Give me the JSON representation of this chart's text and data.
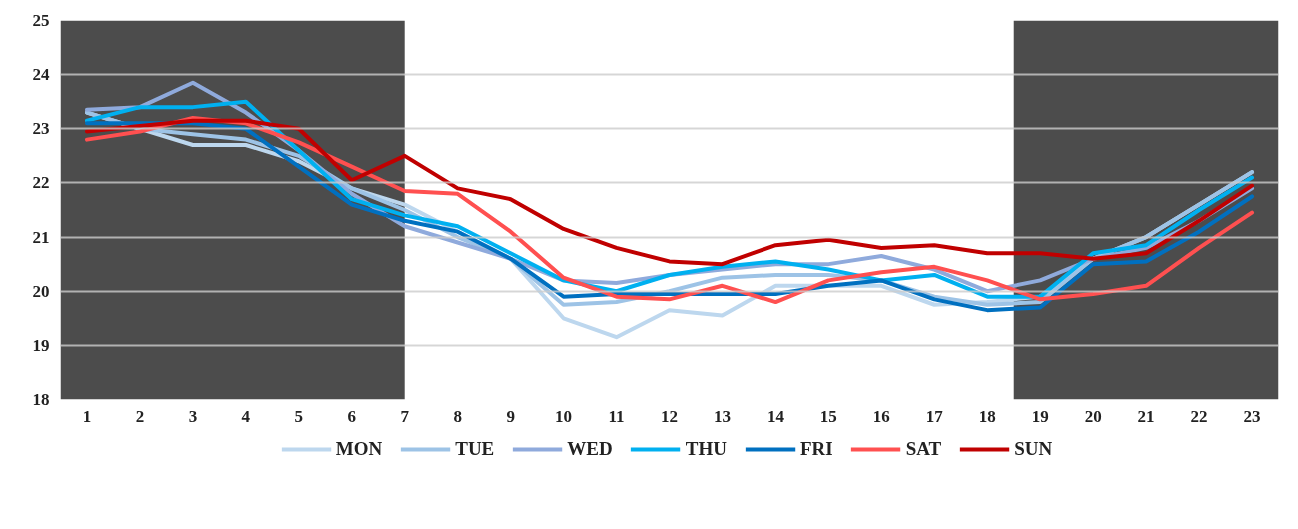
{
  "chart_data": {
    "type": "line",
    "x": [
      1,
      2,
      3,
      4,
      5,
      6,
      7,
      8,
      9,
      10,
      11,
      12,
      13,
      14,
      15,
      16,
      17,
      18,
      19,
      20,
      21,
      22,
      23
    ],
    "xlim": [
      0.5,
      23.5
    ],
    "xticks": [
      1,
      2,
      3,
      4,
      5,
      6,
      7,
      8,
      9,
      10,
      11,
      12,
      13,
      14,
      15,
      16,
      17,
      18,
      19,
      20,
      21,
      22,
      23
    ],
    "ylim": [
      18,
      25
    ],
    "yticks": [
      18,
      19,
      20,
      21,
      22,
      23,
      24,
      25
    ],
    "grid": "y",
    "legend": "bottom",
    "marker": "none",
    "line_style": "solid",
    "bands": [
      {
        "axis": "x",
        "from": 0.5,
        "to": 7,
        "color": "#000000"
      },
      {
        "axis": "x",
        "from": 18.5,
        "to": 23.5,
        "color": "#000000"
      }
    ],
    "series": [
      {
        "name": "MON",
        "color": "#bdd7ee",
        "values": [
          23.3,
          23.0,
          22.7,
          22.7,
          22.4,
          21.9,
          21.6,
          21.1,
          20.6,
          19.5,
          19.15,
          19.65,
          19.55,
          20.1,
          20.1,
          20.1,
          19.75,
          19.8,
          19.9,
          20.6,
          21.0,
          21.6,
          22.2
        ]
      },
      {
        "name": "TUE",
        "color": "#9dc3e6",
        "values": [
          23.3,
          23.0,
          22.9,
          22.8,
          22.5,
          21.9,
          21.5,
          21.0,
          20.6,
          19.75,
          19.8,
          20.0,
          20.25,
          20.3,
          20.3,
          20.2,
          19.9,
          19.75,
          19.8,
          20.6,
          21.0,
          21.6,
          22.2
        ]
      },
      {
        "name": "WED",
        "color": "#8faadc",
        "values": [
          23.35,
          23.4,
          23.85,
          23.3,
          22.6,
          21.8,
          21.2,
          20.9,
          20.6,
          20.2,
          20.15,
          20.3,
          20.4,
          20.5,
          20.5,
          20.65,
          20.4,
          20.0,
          20.2,
          20.6,
          20.8,
          21.3,
          21.9
        ]
      },
      {
        "name": "THU",
        "color": "#00b0f0",
        "values": [
          23.15,
          23.4,
          23.4,
          23.5,
          22.6,
          21.7,
          21.4,
          21.2,
          20.7,
          20.2,
          20.0,
          20.3,
          20.45,
          20.55,
          20.4,
          20.2,
          20.3,
          19.9,
          19.9,
          20.7,
          20.85,
          21.5,
          22.1
        ]
      },
      {
        "name": "FRI",
        "color": "#0070c0",
        "values": [
          23.1,
          23.1,
          23.1,
          23.0,
          22.3,
          21.6,
          21.3,
          21.1,
          20.6,
          19.9,
          19.95,
          19.95,
          19.95,
          19.95,
          20.1,
          20.2,
          19.85,
          19.65,
          19.7,
          20.5,
          20.55,
          21.1,
          21.75
        ]
      },
      {
        "name": "SAT",
        "color": "#ff5050",
        "values": [
          22.8,
          22.95,
          23.2,
          23.1,
          22.75,
          22.3,
          21.85,
          21.8,
          21.1,
          20.25,
          19.9,
          19.85,
          20.1,
          19.8,
          20.2,
          20.35,
          20.45,
          20.2,
          19.85,
          19.95,
          20.1,
          20.8,
          21.45
        ]
      },
      {
        "name": "SUN",
        "color": "#c00000",
        "values": [
          22.95,
          23.05,
          23.15,
          23.15,
          23.0,
          22.05,
          22.5,
          21.9,
          21.7,
          21.15,
          20.8,
          20.55,
          20.5,
          20.85,
          20.95,
          20.8,
          20.85,
          20.7,
          20.7,
          20.6,
          20.7,
          21.3,
          21.95
        ]
      }
    ]
  }
}
